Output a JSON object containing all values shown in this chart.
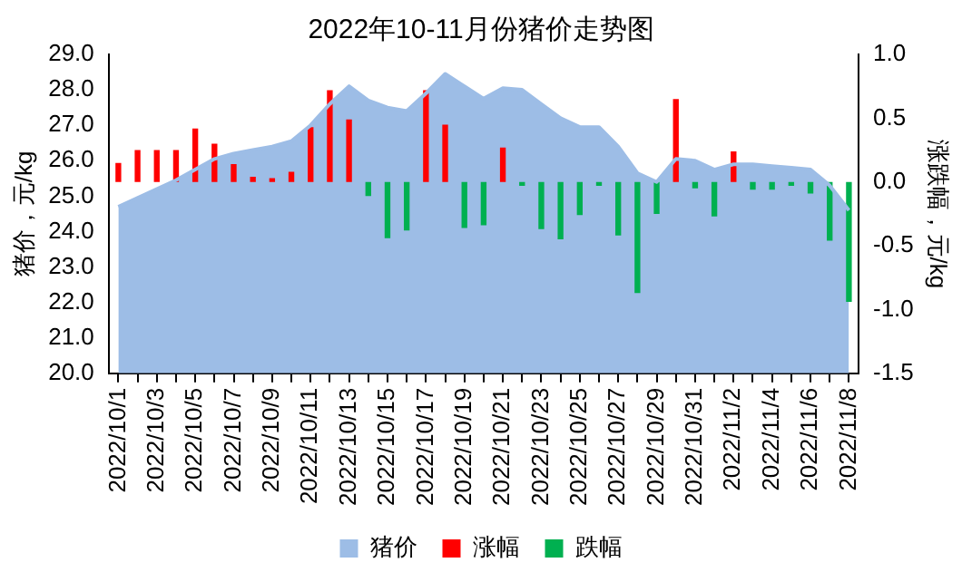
{
  "chart_data": {
    "type": "bar",
    "title": "2022年10-11月份猪价走势图",
    "ylabel": "猪价，元/kg",
    "y2label": "涨跌幅，元/kg",
    "categories": [
      "2022/10/1",
      null,
      "2022/10/3",
      null,
      "2022/10/5",
      null,
      "2022/10/7",
      null,
      "2022/10/9",
      null,
      "2022/10/11",
      null,
      "2022/10/13",
      null,
      "2022/10/15",
      null,
      "2022/10/17",
      null,
      "2022/10/19",
      null,
      "2022/10/21",
      null,
      "2022/10/23",
      null,
      "2022/10/25",
      null,
      "2022/10/27",
      null,
      "2022/10/29",
      null,
      "2022/10/31",
      null,
      "2022/11/2",
      null,
      "2022/11/4",
      null,
      "2022/11/6",
      null,
      "2022/11/8"
    ],
    "series": [
      {
        "name": "猪价",
        "type": "area",
        "color": "#9dbde6",
        "values": [
          24.7,
          24.95,
          25.2,
          25.45,
          25.75,
          26.05,
          26.2,
          26.3,
          26.4,
          26.55,
          27.0,
          27.6,
          28.1,
          27.7,
          27.5,
          27.4,
          27.9,
          28.45,
          28.1,
          27.75,
          28.05,
          28.0,
          27.6,
          27.2,
          26.95,
          26.95,
          26.4,
          25.65,
          25.4,
          26.05,
          26.0,
          25.75,
          25.9,
          25.9,
          25.85,
          25.8,
          25.75,
          25.3,
          24.6
        ]
      },
      {
        "name": "涨幅",
        "axis": "y2",
        "color": "#ff0000",
        "values": [
          0.15,
          0.25,
          0.25,
          0.25,
          0.42,
          0.3,
          0.14,
          0.04,
          0.03,
          0.08,
          0.43,
          0.72,
          0.49,
          null,
          null,
          null,
          0.72,
          0.45,
          null,
          null,
          0.27,
          null,
          null,
          null,
          null,
          null,
          null,
          null,
          null,
          0.65,
          null,
          null,
          0.24,
          null,
          null,
          null,
          null,
          null,
          null
        ]
      },
      {
        "name": "跌幅",
        "axis": "y2",
        "color": "#00b050",
        "values": [
          null,
          null,
          null,
          null,
          null,
          null,
          null,
          null,
          null,
          null,
          null,
          null,
          null,
          -0.11,
          -0.44,
          -0.38,
          null,
          null,
          -0.36,
          -0.34,
          null,
          -0.03,
          -0.37,
          -0.45,
          -0.26,
          -0.03,
          -0.42,
          -0.87,
          -0.25,
          null,
          -0.05,
          -0.27,
          null,
          -0.06,
          -0.06,
          -0.03,
          -0.09,
          -0.46,
          -0.94
        ]
      }
    ],
    "ylim": [
      20,
      29
    ],
    "yticks": [
      {
        "value": 20,
        "label": "20.0"
      },
      {
        "value": 21,
        "label": "21.0"
      },
      {
        "value": 22,
        "label": "22.0"
      },
      {
        "value": 23,
        "label": "23.0"
      },
      {
        "value": 24,
        "label": "24.0"
      },
      {
        "value": 25,
        "label": "25.0"
      },
      {
        "value": 26,
        "label": "26.0"
      },
      {
        "value": 27,
        "label": "27.0"
      },
      {
        "value": 28,
        "label": "28.0"
      },
      {
        "value": 29,
        "label": "29.0"
      }
    ],
    "y2lim": [
      -1.5,
      1
    ],
    "y2ticks": [
      {
        "value": -1.5,
        "label": "-1.5"
      },
      {
        "value": -1,
        "label": "-1.0"
      },
      {
        "value": -0.5,
        "label": "-0.5"
      },
      {
        "value": 0,
        "label": "0.0"
      },
      {
        "value": 0.5,
        "label": "0.5"
      },
      {
        "value": 1,
        "label": "1.0"
      }
    ],
    "legend": "bottom",
    "grid": false
  }
}
